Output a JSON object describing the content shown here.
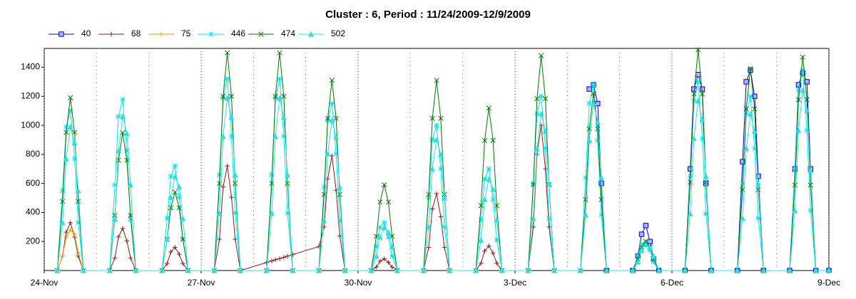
{
  "chart_data": {
    "type": "line",
    "title": "Cluster : 6, Period : 11/24/2009-12/9/2009",
    "x": [
      0.25,
      0.35,
      0.42,
      0.5,
      0.58,
      0.65,
      0.75,
      1.25,
      1.35,
      1.42,
      1.5,
      1.58,
      1.65,
      1.75,
      2.25,
      2.35,
      2.42,
      2.5,
      2.58,
      2.65,
      2.75,
      3.25,
      3.35,
      3.42,
      3.5,
      3.58,
      3.65,
      3.75,
      4.25,
      4.35,
      4.42,
      4.5,
      4.58,
      4.65,
      4.75,
      5.25,
      5.35,
      5.42,
      5.5,
      5.58,
      5.65,
      5.75,
      6.25,
      6.35,
      6.42,
      6.5,
      6.58,
      6.65,
      6.75,
      7.25,
      7.35,
      7.42,
      7.5,
      7.58,
      7.65,
      7.75,
      8.25,
      8.35,
      8.42,
      8.5,
      8.58,
      8.65,
      8.75,
      9.25,
      9.35,
      9.42,
      9.5,
      9.58,
      9.65,
      9.75,
      10.25,
      10.35,
      10.42,
      10.5,
      10.58,
      10.65,
      10.75,
      11.25,
      11.35,
      11.42,
      11.5,
      11.58,
      11.65,
      11.75,
      12.25,
      12.35,
      12.42,
      12.5,
      12.58,
      12.65,
      12.75,
      13.25,
      13.35,
      13.42,
      13.5,
      13.58,
      13.65,
      13.75,
      14.25,
      14.35,
      14.42,
      14.5,
      14.58,
      14.65,
      14.75,
      15
    ],
    "series": [
      {
        "name": "40",
        "color": "#0000cc",
        "marker": "square",
        "values": [
          null,
          null,
          null,
          null,
          null,
          null,
          null,
          null,
          null,
          null,
          null,
          null,
          null,
          null,
          null,
          null,
          null,
          null,
          null,
          null,
          null,
          null,
          null,
          null,
          null,
          null,
          null,
          null,
          null,
          null,
          null,
          null,
          null,
          null,
          null,
          null,
          null,
          null,
          null,
          null,
          null,
          null,
          null,
          null,
          null,
          null,
          null,
          null,
          null,
          null,
          null,
          null,
          null,
          null,
          null,
          null,
          null,
          null,
          null,
          null,
          null,
          null,
          null,
          null,
          null,
          null,
          null,
          null,
          null,
          null,
          null,
          null,
          1250,
          1280,
          1150,
          600,
          0,
          0,
          100,
          250,
          310,
          200,
          80,
          0,
          0,
          700,
          1250,
          1350,
          1250,
          600,
          0,
          0,
          750,
          1300,
          1380,
          1200,
          650,
          0,
          0,
          700,
          1280,
          1360,
          1300,
          700,
          0,
          0
        ]
      },
      {
        "name": "68",
        "color": "#8b1a1a",
        "marker": "dash",
        "values": [
          0,
          99,
          264,
          330,
          231,
          99,
          0,
          0,
          87,
          232,
          290,
          203,
          87,
          0,
          0,
          48,
          128,
          160,
          112,
          48,
          0,
          0,
          216,
          576,
          720,
          504,
          216,
          0,
          55,
          66,
          74,
          82,
          91,
          99,
          110,
          165,
          300,
          632,
          790,
          553,
          237,
          0,
          0,
          24,
          64,
          80,
          56,
          24,
          0,
          0,
          159,
          424,
          530,
          371,
          159,
          0,
          0,
          51,
          136,
          170,
          119,
          51,
          0,
          0,
          300,
          800,
          1000,
          700,
          300,
          0,
          null,
          null,
          null,
          null,
          null,
          null,
          null,
          null,
          null,
          null,
          null,
          null,
          null,
          null,
          null,
          null,
          null,
          null,
          null,
          null,
          null,
          null,
          null,
          null,
          null,
          null,
          null,
          null,
          null,
          null,
          null,
          null,
          null,
          null,
          null,
          null
        ]
      },
      {
        "name": "75",
        "color": "#e6a000",
        "marker": "plus",
        "values": [
          0,
          100,
          230,
          280,
          250,
          120,
          0,
          null,
          null,
          null,
          null,
          null,
          null,
          null,
          null,
          null,
          null,
          null,
          null,
          null,
          null,
          null,
          null,
          null,
          null,
          null,
          null,
          null,
          null,
          null,
          null,
          null,
          null,
          null,
          null,
          null,
          null,
          null,
          null,
          null,
          null,
          null,
          null,
          null,
          null,
          null,
          null,
          null,
          null,
          null,
          null,
          null,
          null,
          null,
          null,
          null,
          null,
          null,
          null,
          null,
          null,
          null,
          null,
          null,
          null,
          null,
          null,
          null,
          null,
          null,
          null,
          null,
          null,
          null,
          null,
          null,
          null,
          null,
          null,
          null,
          null,
          null,
          null,
          null,
          null,
          null,
          null,
          null,
          null,
          null,
          null,
          null,
          null,
          null,
          null,
          null,
          null,
          null,
          null,
          null,
          null,
          null,
          null,
          null,
          null,
          null
        ]
      },
      {
        "name": "446",
        "color": "#00e5ee",
        "marker": "star",
        "values": [
          0,
          550,
          990,
          1100,
          770,
          330,
          0,
          0,
          590,
          1062,
          1180,
          826,
          354,
          0,
          0,
          360,
          648,
          720,
          504,
          216,
          0,
          0,
          660,
          1188,
          1320,
          924,
          396,
          0,
          0,
          660,
          1188,
          1320,
          924,
          396,
          0,
          0,
          575,
          1035,
          1150,
          805,
          345,
          0,
          0,
          165,
          297,
          330,
          231,
          99,
          0,
          0,
          500,
          900,
          1000,
          700,
          300,
          0,
          0,
          350,
          630,
          700,
          490,
          210,
          0,
          0,
          600,
          1080,
          1200,
          840,
          360,
          0,
          0,
          640,
          1152,
          1280,
          896,
          384,
          0,
          0,
          100,
          180,
          200,
          140,
          60,
          0,
          0,
          650,
          1170,
          1300,
          910,
          390,
          0,
          0,
          600,
          1080,
          1200,
          840,
          360,
          0,
          0,
          690,
          1242,
          1380,
          966,
          414,
          0,
          0
        ]
      },
      {
        "name": "474",
        "color": "#007700",
        "marker": "cross",
        "values": [
          0,
          476,
          952,
          1190,
          952,
          476,
          0,
          0,
          380,
          760,
          950,
          760,
          380,
          0,
          0,
          216,
          432,
          540,
          432,
          216,
          0,
          0,
          600,
          1200,
          1500,
          1200,
          600,
          0,
          0,
          600,
          1200,
          1500,
          1200,
          600,
          0,
          0,
          524,
          1048,
          1310,
          1048,
          524,
          0,
          0,
          236,
          472,
          590,
          472,
          236,
          0,
          0,
          524,
          1048,
          1310,
          1048,
          524,
          0,
          0,
          448,
          896,
          1120,
          896,
          448,
          0,
          0,
          592,
          1184,
          1480,
          1184,
          592,
          0,
          0,
          488,
          976,
          1220,
          976,
          488,
          0,
          0,
          80,
          160,
          200,
          160,
          80,
          0,
          0,
          608,
          1216,
          1520,
          1216,
          608,
          0,
          0,
          556,
          1112,
          1390,
          1112,
          556,
          0,
          0,
          588,
          1176,
          1470,
          1176,
          588,
          0,
          0
        ]
      },
      {
        "name": "502",
        "color": "#33dddd",
        "marker": "triangle",
        "values": [
          0,
          330,
          770,
          990,
          880,
          550,
          0,
          0,
          354,
          826,
          1062,
          944,
          590,
          0,
          0,
          216,
          504,
          648,
          576,
          360,
          0,
          0,
          396,
          924,
          1188,
          1056,
          660,
          0,
          0,
          396,
          924,
          1188,
          1056,
          660,
          0,
          0,
          345,
          805,
          1035,
          920,
          575,
          0,
          0,
          99,
          231,
          297,
          264,
          165,
          0,
          0,
          300,
          700,
          900,
          800,
          500,
          0,
          0,
          210,
          490,
          630,
          560,
          350,
          0,
          0,
          360,
          840,
          1080,
          960,
          600,
          0,
          0,
          384,
          896,
          1152,
          1024,
          640,
          0,
          0,
          60,
          140,
          180,
          160,
          100,
          0,
          0,
          390,
          910,
          1170,
          1040,
          650,
          0,
          0,
          360,
          840,
          1080,
          960,
          600,
          0,
          0,
          414,
          966,
          1242,
          1104,
          690,
          0,
          0
        ]
      }
    ],
    "xlim": [
      0,
      15
    ],
    "xticks": [
      {
        "value": 0,
        "label": "24-Nov"
      },
      {
        "value": 3,
        "label": "27-Nov"
      },
      {
        "value": 6,
        "label": "30-Nov"
      },
      {
        "value": 9,
        "label": "3-Dec"
      },
      {
        "value": 12,
        "label": "6-Dec"
      },
      {
        "value": 15,
        "label": "9-Dec"
      }
    ],
    "x_minor_ticks": [
      1,
      2,
      4,
      5,
      7,
      8,
      10,
      11,
      13,
      14
    ],
    "ylim": [
      0,
      1530
    ],
    "yticks": [
      200,
      400,
      600,
      800,
      1000,
      1200,
      1400
    ],
    "grid": true,
    "legend": "top"
  }
}
